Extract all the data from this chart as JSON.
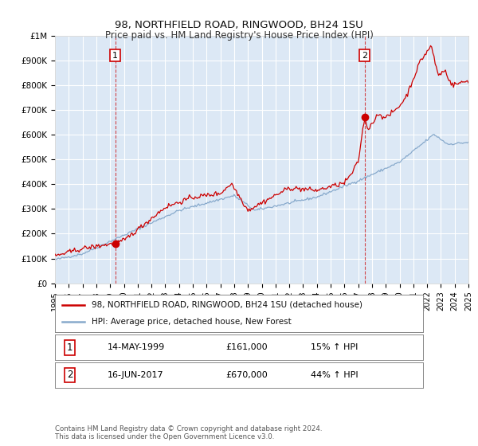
{
  "title": "98, NORTHFIELD ROAD, RINGWOOD, BH24 1SU",
  "subtitle": "Price paid vs. HM Land Registry's House Price Index (HPI)",
  "ylabel_ticks": [
    "£0",
    "£100K",
    "£200K",
    "£300K",
    "£400K",
    "£500K",
    "£600K",
    "£700K",
    "£800K",
    "£900K",
    "£1M"
  ],
  "ylim": [
    0,
    1000000
  ],
  "yticks": [
    0,
    100000,
    200000,
    300000,
    400000,
    500000,
    600000,
    700000,
    800000,
    900000,
    1000000
  ],
  "fig_bg_color": "#ffffff",
  "plot_bg_color": "#dce8f5",
  "grid_color": "#ffffff",
  "red_line_color": "#cc0000",
  "blue_line_color": "#88aacc",
  "annotation1": {
    "label": "1",
    "x_year": 1999.37,
    "y": 161000,
    "date": "14-MAY-1999",
    "price": "£161,000",
    "pct": "15% ↑ HPI"
  },
  "annotation2": {
    "label": "2",
    "x_year": 2017.46,
    "y": 670000,
    "date": "16-JUN-2017",
    "price": "£670,000",
    "pct": "44% ↑ HPI"
  },
  "legend_line1": "98, NORTHFIELD ROAD, RINGWOOD, BH24 1SU (detached house)",
  "legend_line2": "HPI: Average price, detached house, New Forest",
  "footnote": "Contains HM Land Registry data © Crown copyright and database right 2024.\nThis data is licensed under the Open Government Licence v3.0.",
  "x_start": 1995,
  "x_end": 2025,
  "xtick_years": [
    1995,
    1996,
    1997,
    1998,
    1999,
    2000,
    2001,
    2002,
    2003,
    2004,
    2005,
    2006,
    2007,
    2008,
    2009,
    2010,
    2011,
    2012,
    2013,
    2014,
    2015,
    2016,
    2017,
    2018,
    2019,
    2020,
    2021,
    2022,
    2023,
    2024,
    2025
  ]
}
